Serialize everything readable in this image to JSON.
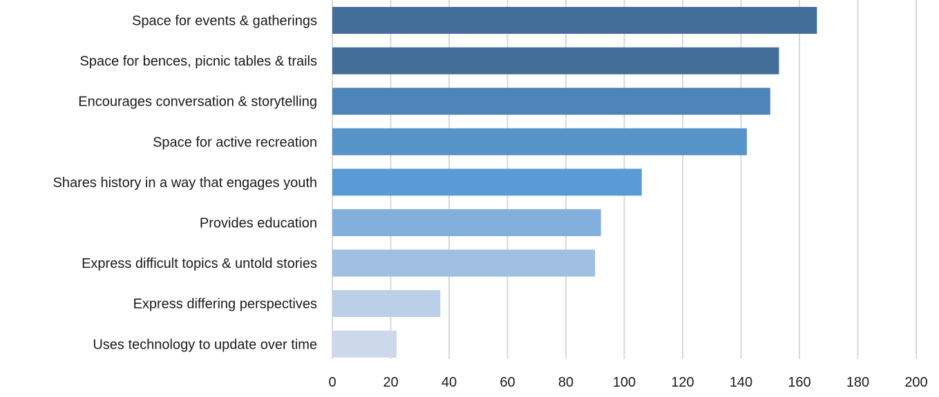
{
  "chart_data": {
    "type": "bar",
    "orientation": "horizontal",
    "categories": [
      "Space for events & gatherings",
      "Space for bences, picnic tables & trails",
      "Encourages conversation & storytelling",
      "Space for active recreation",
      "Shares history in a way that engages youth",
      "Provides education",
      "Express difficult topics & untold stories",
      "Express differing perspectives",
      "Uses technology to update over time"
    ],
    "values": [
      166,
      153,
      150,
      142,
      106,
      92,
      90,
      37,
      22
    ],
    "bar_colors": [
      "#426e99",
      "#426e99",
      "#4d84b9",
      "#5593c9",
      "#5b9bd5",
      "#83afdd",
      "#a1bee3",
      "#bbcfe8",
      "#cbd9eb"
    ],
    "xlim": [
      0,
      200
    ],
    "xticks": [
      "0",
      "20",
      "40",
      "60",
      "80",
      "100",
      "120",
      "140",
      "160",
      "180",
      "200"
    ],
    "grid": "vertical",
    "legend": "none",
    "title": "",
    "xlabel": "",
    "ylabel": ""
  }
}
